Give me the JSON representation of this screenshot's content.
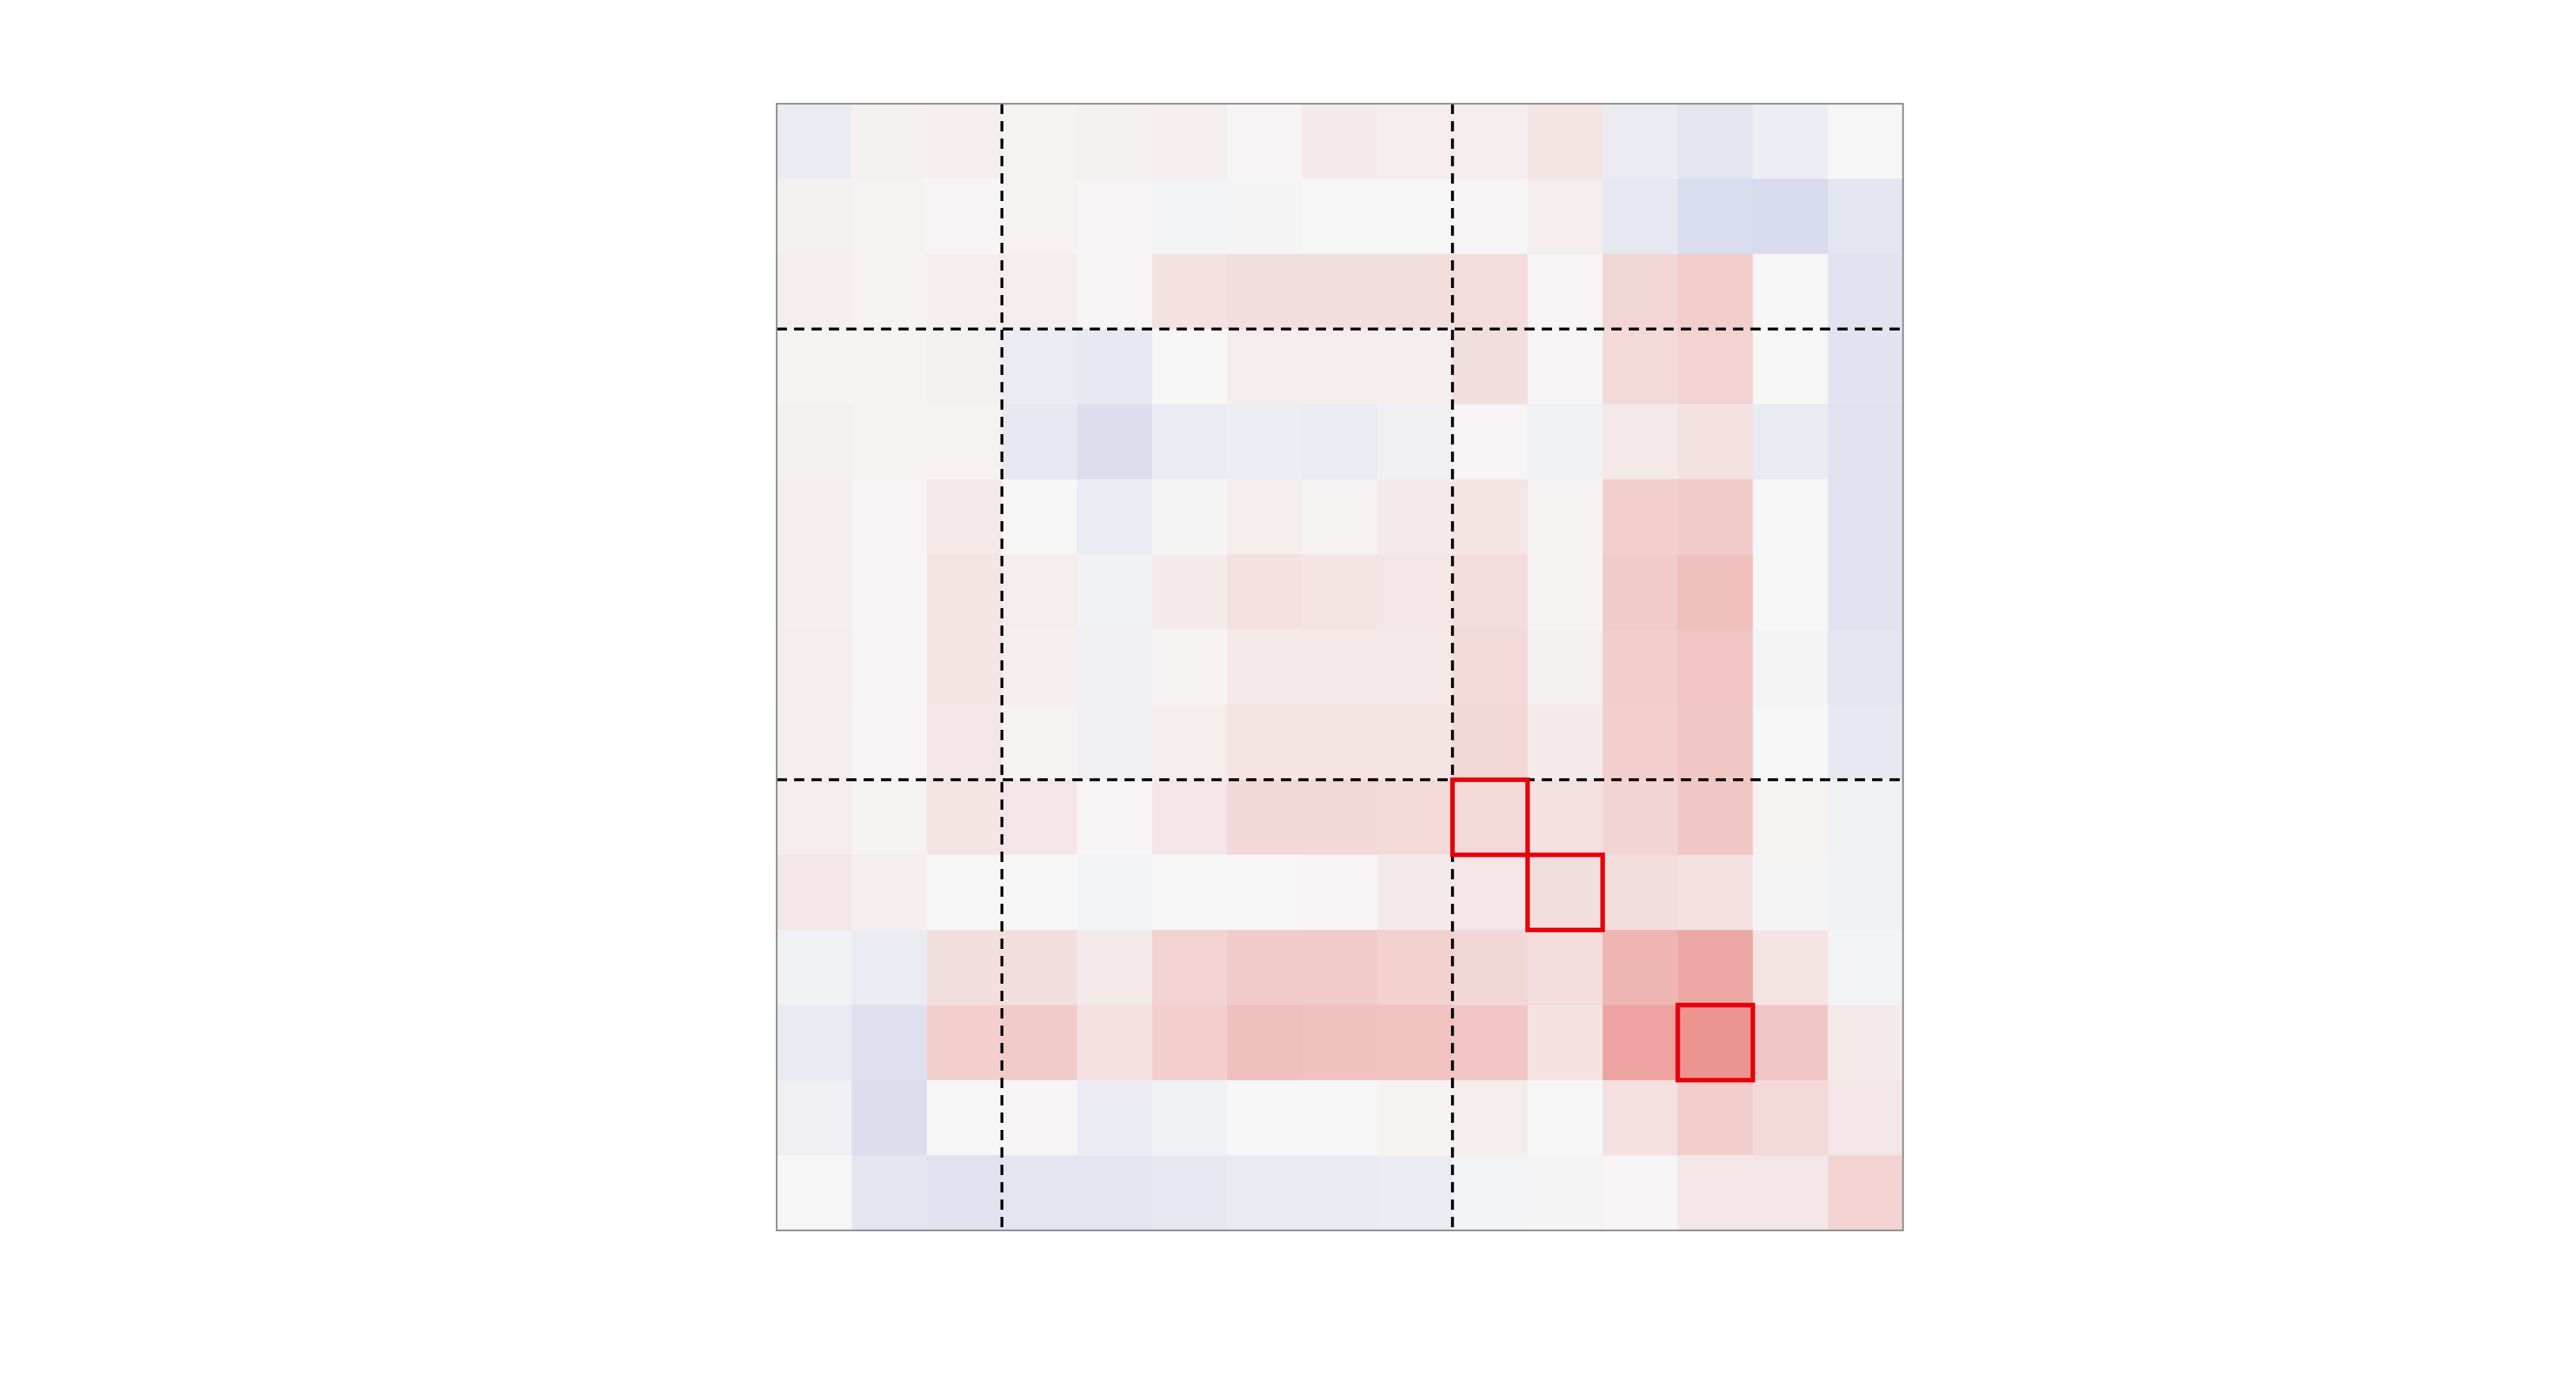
{
  "chart_data": {
    "type": "heatmap",
    "title": "",
    "xlabel": "",
    "ylabel": "",
    "rows": 15,
    "cols": 15,
    "colormap": {
      "name": "diverging",
      "negative_color": "#3b4cc0",
      "neutral_color": "#f6f6f6",
      "positive_color": "#e0312a",
      "vmin": -1,
      "vmax": 1
    },
    "values": [
      [
        -0.06,
        0.03,
        0.04,
        0.02,
        0.03,
        0.04,
        0.01,
        0.06,
        0.05,
        0.05,
        0.09,
        -0.06,
        -0.1,
        -0.05,
        0.0
      ],
      [
        0.03,
        0.02,
        0.01,
        0.02,
        0.01,
        -0.02,
        -0.01,
        0.0,
        0.0,
        0.01,
        0.05,
        -0.09,
        -0.15,
        -0.16,
        -0.1
      ],
      [
        0.04,
        0.02,
        0.04,
        0.05,
        0.01,
        0.1,
        0.12,
        0.12,
        0.12,
        0.13,
        0.01,
        0.16,
        0.21,
        0.0,
        -0.12
      ],
      [
        0.02,
        0.02,
        0.03,
        -0.06,
        -0.08,
        0.0,
        0.05,
        0.05,
        0.04,
        0.12,
        0.01,
        0.14,
        0.18,
        0.0,
        -0.11
      ],
      [
        0.03,
        0.02,
        0.02,
        -0.08,
        -0.14,
        -0.06,
        -0.05,
        -0.06,
        -0.04,
        0.01,
        -0.03,
        0.07,
        0.1,
        -0.07,
        -0.12
      ],
      [
        0.04,
        0.01,
        0.07,
        0.0,
        -0.06,
        -0.01,
        0.05,
        0.02,
        0.06,
        0.09,
        0.02,
        0.2,
        0.22,
        0.0,
        -0.12
      ],
      [
        0.04,
        0.01,
        0.09,
        0.05,
        -0.03,
        0.06,
        0.11,
        0.09,
        0.08,
        0.13,
        0.02,
        0.22,
        0.28,
        0.0,
        -0.12
      ],
      [
        0.05,
        0.01,
        0.09,
        0.04,
        -0.04,
        0.02,
        0.07,
        0.07,
        0.07,
        0.14,
        0.03,
        0.21,
        0.25,
        -0.01,
        -0.1
      ],
      [
        0.04,
        0.01,
        0.08,
        0.02,
        -0.04,
        0.05,
        0.09,
        0.09,
        0.09,
        0.15,
        0.06,
        0.2,
        0.24,
        0.0,
        -0.08
      ],
      [
        0.05,
        0.02,
        0.09,
        0.08,
        0.01,
        0.08,
        0.15,
        0.15,
        0.14,
        0.14,
        0.11,
        0.17,
        0.24,
        0.02,
        -0.03
      ],
      [
        0.08,
        0.04,
        0.0,
        0.0,
        -0.02,
        0.0,
        0.0,
        0.01,
        0.06,
        0.08,
        0.12,
        0.12,
        0.1,
        -0.01,
        -0.03
      ],
      [
        -0.03,
        -0.06,
        0.12,
        0.12,
        0.06,
        0.18,
        0.22,
        0.22,
        0.19,
        0.16,
        0.13,
        0.33,
        0.4,
        0.09,
        -0.02
      ],
      [
        -0.07,
        -0.13,
        0.2,
        0.22,
        0.1,
        0.2,
        0.28,
        0.27,
        0.26,
        0.25,
        0.1,
        0.42,
        0.5,
        0.24,
        0.06
      ],
      [
        -0.04,
        -0.14,
        0.0,
        0.01,
        -0.06,
        -0.03,
        0.0,
        0.0,
        0.02,
        0.05,
        0.0,
        0.11,
        0.21,
        0.14,
        0.08
      ],
      [
        0.0,
        -0.1,
        -0.12,
        -0.1,
        -0.1,
        -0.09,
        -0.07,
        -0.07,
        -0.06,
        -0.02,
        -0.01,
        0.01,
        0.08,
        0.08,
        0.18
      ]
    ],
    "dividers": {
      "row_boundaries": [
        3,
        9
      ],
      "col_boundaries": [
        3,
        9
      ]
    },
    "highlighted_cells": [
      {
        "row": 9,
        "col": 9
      },
      {
        "row": 10,
        "col": 10
      },
      {
        "row": 12,
        "col": 12
      }
    ],
    "colors": {
      "divider": "#000000",
      "highlight": "#e8000b",
      "frame": "#888888"
    }
  }
}
